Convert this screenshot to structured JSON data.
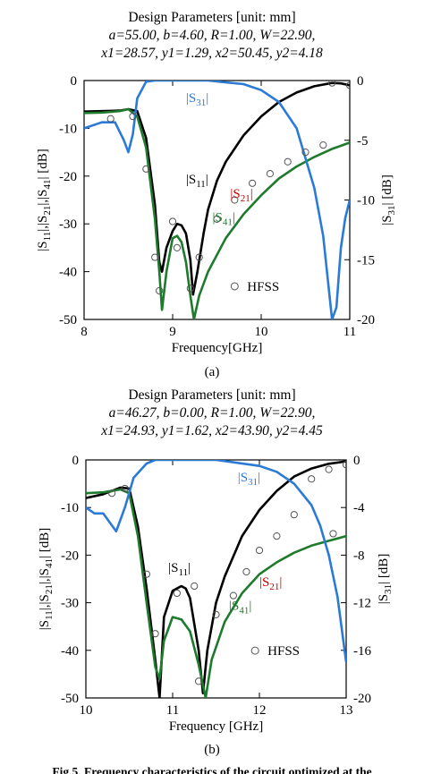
{
  "caption": "Fig.5. Frequency characteristics of the circuit optimized at the",
  "chart_data": [
    {
      "type": "line",
      "panel_label": "(a)",
      "title": "Design Parameters  [unit: mm]",
      "subtitle_line1": "a=55.00, b=4.60, R=1.00, W=22.90,",
      "subtitle_line2": "x1=28.57, y1=1.29, x2=50.45, y2=4.18",
      "xlabel": "Frequency[GHz]",
      "ylabel": "|S11|,|S21|,|S41| [dB]",
      "ylabel_right": "|S31| [dB]",
      "xlim": [
        8,
        11
      ],
      "ylim": [
        -50,
        0
      ],
      "ylim_right": [
        -20,
        0
      ],
      "xticks": [
        "8",
        "9",
        "10",
        "11"
      ],
      "yticks": [
        "0",
        "-10",
        "-20",
        "-30",
        "-40",
        "-50"
      ],
      "yticks_right": [
        "0",
        "-5",
        "-10",
        "-15",
        "-20"
      ],
      "grid": false,
      "legend": "HFSS",
      "series": [
        {
          "name": "S11",
          "label": "|S11|",
          "color": "#000000",
          "axis": "left",
          "x": [
            8.0,
            8.2,
            8.4,
            8.5,
            8.6,
            8.7,
            8.8,
            8.85,
            8.88,
            8.93,
            9.0,
            9.05,
            9.1,
            9.15,
            9.2,
            9.23,
            9.28,
            9.35,
            9.4,
            9.5,
            9.6,
            9.8,
            10.0,
            10.2,
            10.4,
            10.6,
            10.8,
            10.9,
            11.0
          ],
          "y": [
            -6.5,
            -6.4,
            -6.3,
            -6.0,
            -6.4,
            -12.0,
            -26.0,
            -38.0,
            -40.0,
            -35.0,
            -31.5,
            -30.0,
            -30.3,
            -32.0,
            -37.5,
            -44.8,
            -40.0,
            -32.0,
            -27.0,
            -21.0,
            -17.0,
            -11.5,
            -7.5,
            -4.5,
            -2.5,
            -1.2,
            -0.5,
            -0.6,
            -1.0
          ]
        },
        {
          "name": "S21",
          "label": "|S21|",
          "color": "#c00000",
          "axis": "left",
          "x": [],
          "y": []
        },
        {
          "name": "S41",
          "label": "|S41|",
          "color": "#1e7a2c",
          "axis": "left",
          "x": [
            8.0,
            8.2,
            8.4,
            8.5,
            8.6,
            8.7,
            8.8,
            8.85,
            8.88,
            8.93,
            9.0,
            9.05,
            9.1,
            9.15,
            9.2,
            9.24,
            9.3,
            9.4,
            9.6,
            9.8,
            10.0,
            10.2,
            10.4,
            10.6,
            10.8,
            11.0
          ],
          "y": [
            -6.8,
            -6.7,
            -6.4,
            -6.0,
            -7.5,
            -14.0,
            -29.0,
            -40.0,
            -48.0,
            -40.0,
            -33.0,
            -32.5,
            -33.8,
            -38.0,
            -45.0,
            -50.0,
            -45.0,
            -40.0,
            -33.0,
            -28.0,
            -24.0,
            -20.5,
            -18.0,
            -16.0,
            -14.3,
            -13.0
          ]
        },
        {
          "name": "S31",
          "label": "|S31|",
          "color": "#2a7ad6",
          "axis": "right",
          "x": [
            8.0,
            8.2,
            8.35,
            8.45,
            8.5,
            8.55,
            8.6,
            8.7,
            8.8,
            9.0,
            9.4,
            9.8,
            10.0,
            10.2,
            10.4,
            10.6,
            10.7,
            10.8,
            10.85,
            10.9,
            10.95,
            11.0
          ],
          "y": [
            -4.0,
            -3.5,
            -3.5,
            -5.0,
            -6.0,
            -4.5,
            -1.5,
            -0.1,
            0.0,
            0.0,
            0.0,
            -0.3,
            -0.8,
            -1.8,
            -4.0,
            -9.0,
            -13.0,
            -20.0,
            -19.0,
            -14.0,
            -11.5,
            -10.0
          ]
        },
        {
          "name": "HFSS",
          "label": "HFSS",
          "color": "#555555",
          "axis": "left",
          "marker": "circle",
          "x": [
            8.3,
            8.55,
            8.7,
            8.8,
            8.85,
            9.0,
            9.05,
            9.2,
            9.3,
            9.5,
            9.7,
            9.9,
            10.1,
            10.3,
            10.5,
            10.7,
            10.8,
            11.0
          ],
          "y": [
            -8.0,
            -7.5,
            -18.5,
            -37.0,
            -44.0,
            -29.5,
            -35.0,
            -43.5,
            -37.0,
            -29.0,
            -25.0,
            -21.5,
            -19.5,
            -17.0,
            -15.0,
            -13.5,
            -0.5,
            -1.0
          ]
        }
      ],
      "annotations": [
        "|S31|",
        "|S11|",
        "|S21|",
        "|S41|"
      ]
    },
    {
      "type": "line",
      "panel_label": "(b)",
      "title": "Design Parameters  [unit: mm]",
      "subtitle_line1": "a=46.27, b=0.00, R=1.00, W=22.90,",
      "subtitle_line2": "x1=24.93, y1=1.62, x2=43.90, y2=4.45",
      "xlabel": "Frequency [GHz]",
      "ylabel": "|S11|,|S21|,|S41| [dB]",
      "ylabel_right": "S31 [dB]",
      "xlim": [
        10,
        13
      ],
      "ylim": [
        -50,
        0
      ],
      "ylim_right": [
        -20,
        0
      ],
      "xticks": [
        "10",
        "11",
        "12",
        "13"
      ],
      "yticks": [
        "0",
        "-10",
        "-20",
        "-30",
        "-40",
        "-50"
      ],
      "yticks_right": [
        "0",
        "-4",
        "-8",
        "-12",
        "-16",
        "-20"
      ],
      "grid": false,
      "legend": "HFSS",
      "series": [
        {
          "name": "S11",
          "label": "|S11|",
          "color": "#000000",
          "axis": "left",
          "x": [
            10.0,
            10.2,
            10.4,
            10.5,
            10.6,
            10.7,
            10.8,
            10.85,
            10.9,
            11.0,
            11.1,
            11.15,
            11.2,
            11.3,
            11.35,
            11.4,
            11.5,
            11.6,
            11.8,
            12.0,
            12.2,
            12.4,
            12.6,
            12.8,
            13.0
          ],
          "y": [
            -8.0,
            -7.2,
            -5.8,
            -6.0,
            -14.0,
            -27.0,
            -42.0,
            -50.0,
            -33.0,
            -27.5,
            -26.5,
            -27.0,
            -29.0,
            -40.0,
            -49.0,
            -40.0,
            -30.0,
            -24.5,
            -16.0,
            -10.5,
            -6.5,
            -3.5,
            -1.8,
            -0.8,
            -0.3
          ]
        },
        {
          "name": "S21",
          "label": "|S21|",
          "color": "#c00000",
          "axis": "left",
          "x": [],
          "y": []
        },
        {
          "name": "S41",
          "label": "|S41|",
          "color": "#1e7a2c",
          "axis": "left",
          "x": [
            10.0,
            10.2,
            10.4,
            10.5,
            10.6,
            10.7,
            10.8,
            10.85,
            10.9,
            11.0,
            11.1,
            11.2,
            11.3,
            11.38,
            11.45,
            11.6,
            11.8,
            12.0,
            12.2,
            12.4,
            12.6,
            12.8,
            13.0
          ],
          "y": [
            -7.0,
            -6.8,
            -6.2,
            -7.0,
            -16.0,
            -30.0,
            -43.5,
            -46.0,
            -38.0,
            -33.0,
            -33.5,
            -36.0,
            -43.0,
            -50.0,
            -42.0,
            -34.0,
            -28.0,
            -24.0,
            -21.5,
            -19.5,
            -18.0,
            -17.0,
            -16.0
          ]
        },
        {
          "name": "S31",
          "label": "|S31|",
          "color": "#2a7ad6",
          "axis": "right",
          "x": [
            10.0,
            10.1,
            10.2,
            10.35,
            10.45,
            10.55,
            10.7,
            10.8,
            11.0,
            11.5,
            12.0,
            12.2,
            12.4,
            12.6,
            12.7,
            12.8,
            12.9,
            13.0
          ],
          "y": [
            -4.0,
            -4.5,
            -4.5,
            -6.0,
            -4.0,
            -1.5,
            -0.3,
            0.0,
            0.0,
            0.0,
            -0.5,
            -1.0,
            -2.0,
            -3.8,
            -5.5,
            -8.0,
            -11.5,
            -17.0
          ]
        },
        {
          "name": "HFSS",
          "label": "HFSS",
          "color": "#555555",
          "axis": "left",
          "marker": "circle",
          "x": [
            10.3,
            10.45,
            10.7,
            10.8,
            11.05,
            11.25,
            11.3,
            11.5,
            11.7,
            11.85,
            12.0,
            12.2,
            12.4,
            12.6,
            12.8,
            12.85,
            13.0
          ],
          "y": [
            -7.0,
            -6.0,
            -24.0,
            -36.5,
            -28.0,
            -26.5,
            -46.5,
            -32.5,
            -28.5,
            -23.5,
            -19.0,
            -16.0,
            -11.5,
            -4.0,
            -2.0,
            -15.5,
            -1.0
          ]
        }
      ],
      "annotations": [
        "|S31|",
        "|S11|",
        "|S21|",
        "|S41|"
      ]
    }
  ]
}
